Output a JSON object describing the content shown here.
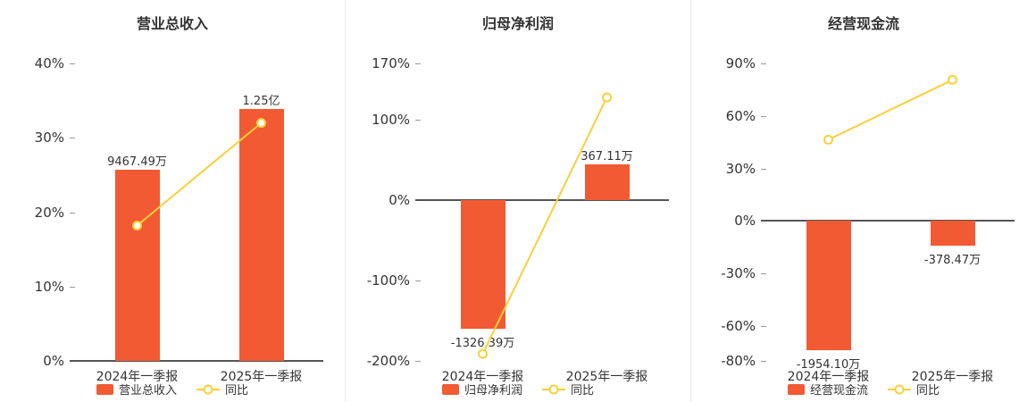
{
  "page": {
    "background": "#ffffff"
  },
  "colors": {
    "bar": "#f25a33",
    "line": "#f8d03a",
    "marker_fill": "#ffffff",
    "title_text": "#333333",
    "axis_text": "#333333",
    "zero_line": "#555555",
    "tick": "#999999",
    "separator": "#e8e8e8"
  },
  "chart_data": [
    {
      "type": "bar+line",
      "title": "营业总收入",
      "categories": [
        "2024年一季报",
        "2025年一季报"
      ],
      "bar_series": {
        "name": "营业总收入",
        "value_labels": [
          "9467.49万",
          "1.25亿"
        ],
        "values_wan": [
          9467.49,
          12500
        ],
        "plot_pct": [
          25.7,
          33.9
        ]
      },
      "line_series": {
        "name": "同比",
        "values_pct": [
          18.2,
          32.0
        ]
      },
      "axis": {
        "range": [
          0,
          40
        ],
        "ticks": [
          0,
          10,
          20,
          30,
          40
        ],
        "tick_labels": [
          "0%",
          "10%",
          "20%",
          "30%",
          "40%"
        ]
      },
      "legend": [
        "营业总收入",
        "同比"
      ],
      "legend_position": "bottom",
      "grid": false
    },
    {
      "type": "bar+line",
      "title": "归母净利润",
      "categories": [
        "2024年一季报",
        "2025年一季报"
      ],
      "bar_series": {
        "name": "归母净利润",
        "value_labels": [
          "-1326.39万",
          "367.11万"
        ],
        "values_wan": [
          -1326.39,
          367.11
        ],
        "plot_pct": [
          -160,
          44.3
        ]
      },
      "line_series": {
        "name": "同比",
        "values_pct": [
          -191.3,
          127.7
        ]
      },
      "axis": {
        "range": [
          -200,
          170
        ],
        "ticks": [
          -200,
          -100,
          0,
          100,
          170
        ],
        "tick_labels": [
          "-200%",
          "-100%",
          "0%",
          "100%",
          "170%"
        ]
      },
      "legend": [
        "归母净利润",
        "同比"
      ],
      "legend_position": "bottom",
      "grid": false
    },
    {
      "type": "bar+line",
      "title": "经营现金流",
      "categories": [
        "2024年一季报",
        "2025年一季报"
      ],
      "bar_series": {
        "name": "经营现金流",
        "value_labels": [
          "-1954.10万",
          "-378.47万"
        ],
        "values_wan": [
          -1954.1,
          -378.47
        ],
        "plot_pct": [
          -74,
          -14.3
        ]
      },
      "line_series": {
        "name": "同比",
        "values_pct": [
          46.4,
          80.6
        ]
      },
      "axis": {
        "range": [
          -80,
          90
        ],
        "ticks": [
          -80,
          -60,
          -30,
          0,
          30,
          60,
          90
        ],
        "tick_labels": [
          "-80%",
          "-60%",
          "-30%",
          "0%",
          "30%",
          "60%",
          "90%"
        ]
      },
      "legend": [
        "经营现金流",
        "同比"
      ],
      "legend_position": "bottom",
      "grid": false
    }
  ]
}
